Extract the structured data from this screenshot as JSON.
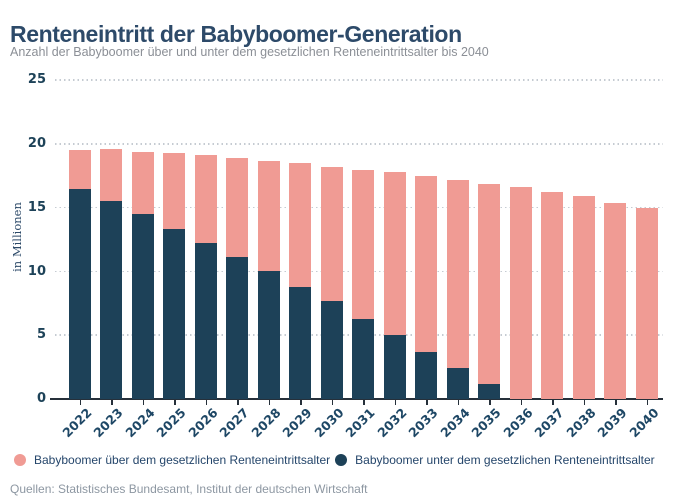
{
  "header": {
    "title": "Renteneintritt der Babyboomer-Generation",
    "subtitle": "Anzahl der Babyboomer über und unter dem gesetzlichen Renteneintrittsalter bis 2040"
  },
  "chart_data": {
    "type": "bar",
    "stacked": true,
    "title": "Renteneintritt der Babyboomer-Generation",
    "subtitle": "Anzahl der Babyboomer über und unter dem gesetzlichen Renteneintrittsalter bis 2040",
    "xlabel": "",
    "ylabel": "in Millionen",
    "ylim": [
      0,
      25
    ],
    "yticks": [
      0,
      5,
      10,
      15,
      20,
      25
    ],
    "grid": "horizontal-dotted",
    "legend_position": "bottom",
    "categories": [
      "2022",
      "2023",
      "2024",
      "2025",
      "2026",
      "2027",
      "2028",
      "2029",
      "2030",
      "2031",
      "2032",
      "2033",
      "2034",
      "2035",
      "2036",
      "2037",
      "2038",
      "2039",
      "2040"
    ],
    "series": [
      {
        "name": "Babyboomer über dem gesetzlichen Renteneintrittsalter",
        "color": "#F09B94",
        "values": [
          3.0,
          4.1,
          4.9,
          6.0,
          6.9,
          7.8,
          8.7,
          9.7,
          10.5,
          11.7,
          12.8,
          13.8,
          14.8,
          15.7,
          16.6,
          16.2,
          15.9,
          15.4,
          15.0
        ]
      },
      {
        "name": "Babyboomer unter dem gesetzlichen Renteneintrittsalter",
        "color": "#1D4158",
        "values": [
          16.5,
          15.5,
          14.5,
          13.3,
          12.2,
          11.1,
          10.0,
          8.8,
          7.7,
          6.3,
          5.0,
          3.7,
          2.4,
          1.2,
          0,
          0,
          0,
          0,
          0
        ]
      }
    ],
    "totals": [
      19.5,
      19.6,
      19.4,
      19.3,
      19.1,
      18.9,
      18.7,
      18.5,
      18.2,
      18.0,
      17.8,
      17.5,
      17.2,
      16.9,
      16.6,
      16.2,
      15.9,
      15.4,
      15.0
    ]
  },
  "colors": {
    "over_retirement": "#F09B94",
    "under_retirement": "#1D4158",
    "title_text": "#2d4a69",
    "axis_label_text": "#1d4258",
    "gridline": "#c5cbd2",
    "axis_line": "#26303a",
    "subtitle_text": "#8b8f96",
    "source_text": "#8d97a2"
  },
  "footer": {
    "source": "Quellen: Statistisches Bundesamt, Institut der deutschen Wirtschaft"
  }
}
